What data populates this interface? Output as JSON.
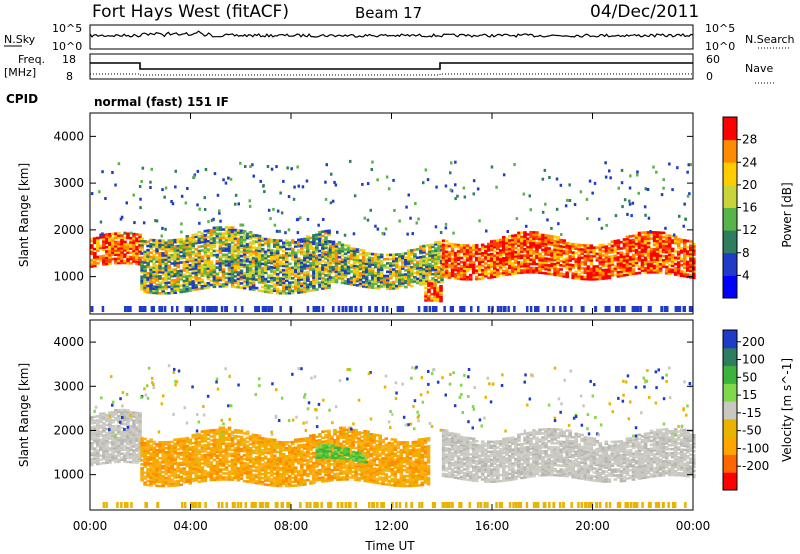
{
  "header": {
    "station": "Fort Hays West (fitACF)",
    "beam": "Beam 17",
    "date": "04/Dec/2011"
  },
  "top_panels": {
    "nsky_label": "N.Sky",
    "nsky_ticks": [
      "10^5",
      "10^0"
    ],
    "nsearch_label": "N.Search",
    "nsearch_ticks": [
      "10^5",
      "10^0"
    ],
    "freq_label": "Freq.",
    "freq_unit": "[MHz]",
    "freq_ticks": [
      "18",
      "8"
    ],
    "nave_label": "Nave",
    "nave_ticks": [
      "60",
      "0"
    ],
    "cpid_label": "CPID",
    "cpid_text": "normal (fast) 151 IF"
  },
  "chart_data": [
    {
      "type": "heatmap",
      "name": "power",
      "ylabel": "Slant Range [km]",
      "yticks": [
        "4000",
        "3000",
        "2000",
        "1000"
      ],
      "ylim": [
        200,
        4500
      ],
      "xlim": [
        0,
        24
      ],
      "colorbar": {
        "label": "Power [dB]",
        "ticks": [
          "28",
          "24",
          "20",
          "16",
          "12",
          "8",
          "4"
        ],
        "colors": [
          "#0000ff",
          "#1f3cc8",
          "#2e7d5e",
          "#57b34a",
          "#c8d43a",
          "#ffcc00",
          "#ff8c00",
          "#ff0000"
        ]
      },
      "features": [
        {
          "start": 0.0,
          "end": 2.0,
          "low": 1200,
          "high": 1800,
          "level": "strong"
        },
        {
          "start": 2.0,
          "end": 9.5,
          "low": 700,
          "high": 1900,
          "level": "moderate"
        },
        {
          "start": 9.5,
          "end": 14.0,
          "low": 800,
          "high": 1600,
          "level": "moderate"
        },
        {
          "start": 13.3,
          "end": 14.0,
          "low": 400,
          "high": 700,
          "level": "strong"
        },
        {
          "start": 14.0,
          "end": 24.0,
          "low": 1000,
          "high": 1800,
          "level": "strong"
        }
      ]
    },
    {
      "type": "heatmap",
      "name": "velocity",
      "ylabel": "Slant Range [km]",
      "yticks": [
        "4000",
        "3000",
        "2000",
        "1000"
      ],
      "ylim": [
        200,
        4500
      ],
      "xlim": [
        0,
        24
      ],
      "xlabel": "Time UT",
      "xticks": [
        "00:00",
        "04:00",
        "08:00",
        "12:00",
        "16:00",
        "20:00",
        "00:00"
      ],
      "colorbar": {
        "label": "Velocity [m s^-1]",
        "ticks": [
          "200",
          "100",
          "50",
          "15",
          "-15",
          "-50",
          "-100",
          "-200"
        ],
        "colors": [
          "#ff0000",
          "#ff6600",
          "#ffa500",
          "#e8b400",
          "#c8c8c0",
          "#7fd94a",
          "#3cb43c",
          "#2e7d5e",
          "#1f3cc8"
        ]
      },
      "features": [
        {
          "start": 0.0,
          "end": 2.0,
          "low": 1200,
          "high": 2300,
          "level": "ground"
        },
        {
          "start": 2.0,
          "end": 13.5,
          "low": 800,
          "high": 1900,
          "level": "negative"
        },
        {
          "start": 9.0,
          "end": 11.0,
          "low": 1300,
          "high": 1500,
          "level": "positive"
        },
        {
          "start": 14.0,
          "end": 24.0,
          "low": 900,
          "high": 1900,
          "level": "ground"
        }
      ]
    }
  ]
}
